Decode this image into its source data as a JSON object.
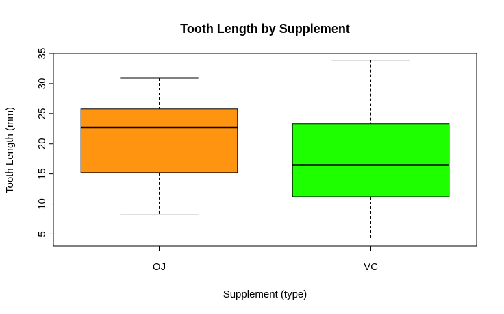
{
  "chart_data": {
    "type": "box",
    "title": "Tooth Length by Supplement",
    "xlabel": "Supplement (type)",
    "ylabel": "Tooth Length (mm)",
    "ylim": [
      3.0,
      35.0
    ],
    "yticks": [
      "5",
      "10",
      "15",
      "20",
      "25",
      "30",
      "35"
    ],
    "grid": false,
    "categories": [
      "OJ",
      "VC"
    ],
    "boxes": [
      {
        "category": "OJ",
        "min": 8.2,
        "q1": 15.2,
        "median": 22.7,
        "q3": 25.8,
        "max": 30.9,
        "color": "#FF9410"
      },
      {
        "category": "VC",
        "min": 4.2,
        "q1": 11.2,
        "median": 16.5,
        "q3": 23.3,
        "max": 33.9,
        "color": "#1EFF00"
      }
    ]
  }
}
